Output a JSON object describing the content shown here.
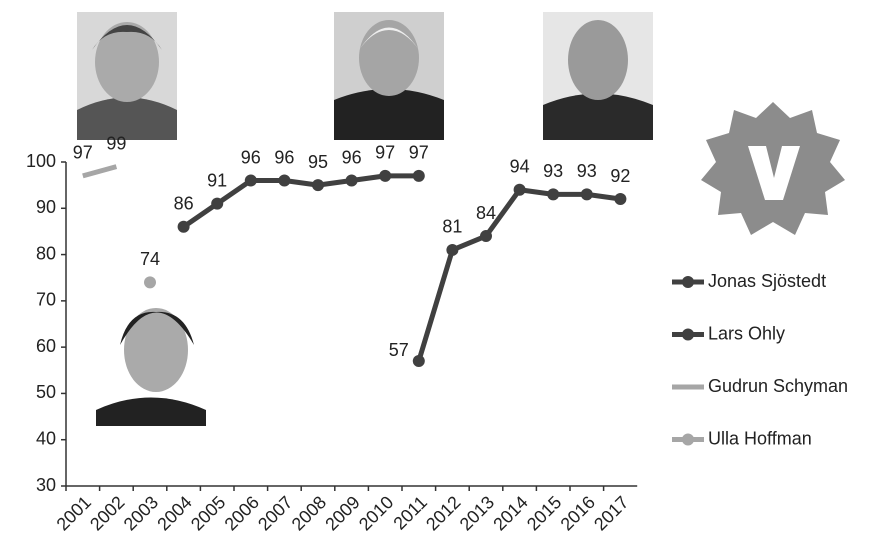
{
  "chart_data": {
    "type": "line",
    "categories": [
      "2001",
      "2002",
      "2003",
      "2004",
      "2005",
      "2006",
      "2007",
      "2008",
      "2009",
      "2010",
      "2011",
      "2012",
      "2013",
      "2014",
      "2015",
      "2016",
      "2017"
    ],
    "series": [
      {
        "name": "Jonas Sjöstedt",
        "color": "#404040",
        "markers": true,
        "values": [
          null,
          null,
          null,
          null,
          null,
          null,
          null,
          null,
          null,
          null,
          57,
          81,
          84,
          94,
          93,
          93,
          92
        ]
      },
      {
        "name": "Lars Ohly",
        "color": "#404040",
        "markers": true,
        "values": [
          null,
          null,
          null,
          86,
          91,
          96,
          96,
          95,
          96,
          97,
          97,
          null,
          null,
          null,
          null,
          null,
          null
        ]
      },
      {
        "name": "Gudrun Schyman",
        "color": "#a6a6a6",
        "markers": false,
        "values": [
          97,
          99,
          null,
          null,
          null,
          null,
          null,
          null,
          null,
          null,
          null,
          null,
          null,
          null,
          null,
          null,
          null
        ]
      },
      {
        "name": "Ulla Hoffman",
        "color": "#a6a6a6",
        "markers": true,
        "values": [
          null,
          null,
          74,
          null,
          null,
          null,
          null,
          null,
          null,
          null,
          null,
          null,
          null,
          null,
          null,
          null,
          null
        ]
      }
    ],
    "ylim": [
      30,
      100
    ],
    "yticks": [
      30,
      40,
      50,
      60,
      70,
      80,
      90,
      100
    ],
    "grid": false,
    "legend": "right"
  }
}
